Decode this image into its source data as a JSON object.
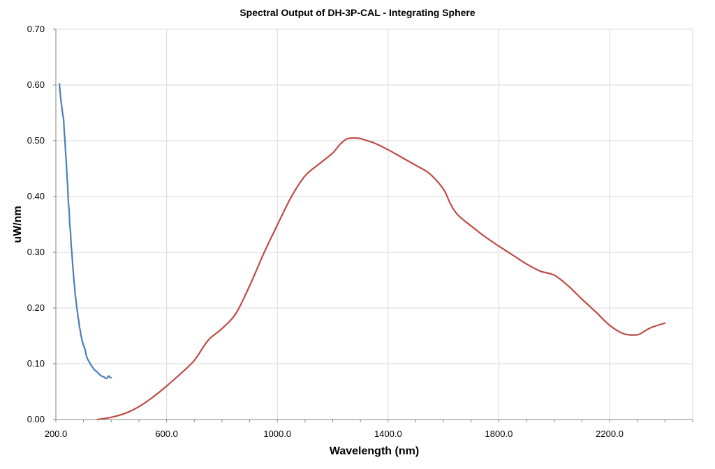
{
  "chart_data": {
    "type": "line",
    "title": "Spectral Output of DH-3P-CAL - Integrating Sphere",
    "xlabel": "Wavelength (nm)",
    "ylabel": "uW/nm",
    "xlim": [
      200,
      2500
    ],
    "ylim": [
      0,
      0.7
    ],
    "xticks": [
      200,
      600,
      1000,
      1400,
      1800,
      2200
    ],
    "xtick_labels": [
      "200.0",
      "600.0",
      "1000.0",
      "1400.0",
      "1800.0",
      "2200.0"
    ],
    "yticks": [
      0,
      0.1,
      0.2,
      0.3,
      0.4,
      0.5,
      0.6,
      0.7
    ],
    "ytick_labels": [
      "0.00",
      "0.10",
      "0.20",
      "0.30",
      "0.40",
      "0.50",
      "0.60",
      "0.70"
    ],
    "x_gridlines": [
      200,
      600,
      1000,
      1400,
      1800,
      2200,
      2500
    ],
    "grid": true,
    "legend": "none",
    "series": [
      {
        "color": "#4a7ebb",
        "x": [
          213,
          215,
          218,
          220,
          223,
          225,
          228,
          230,
          233,
          235,
          238,
          240,
          243,
          245,
          248,
          250,
          253,
          255,
          258,
          260,
          263,
          265,
          268,
          270,
          273,
          275,
          278,
          280,
          283,
          285,
          288,
          290,
          293,
          295,
          298,
          300,
          305,
          310,
          315,
          320,
          325,
          330,
          335,
          340,
          345,
          350,
          355,
          360,
          365,
          370,
          375,
          380,
          385,
          390,
          395,
          400
        ],
        "y": [
          0.602,
          0.589,
          0.574,
          0.566,
          0.555,
          0.547,
          0.538,
          0.519,
          0.499,
          0.481,
          0.458,
          0.438,
          0.415,
          0.391,
          0.375,
          0.352,
          0.335,
          0.315,
          0.298,
          0.283,
          0.264,
          0.251,
          0.237,
          0.224,
          0.213,
          0.202,
          0.193,
          0.184,
          0.176,
          0.167,
          0.16,
          0.153,
          0.146,
          0.141,
          0.136,
          0.133,
          0.126,
          0.115,
          0.108,
          0.104,
          0.099,
          0.096,
          0.092,
          0.089,
          0.087,
          0.085,
          0.082,
          0.08,
          0.078,
          0.077,
          0.076,
          0.074,
          0.074,
          0.078,
          0.076,
          0.075
        ]
      },
      {
        "color": "#be4b48",
        "x": [
          350,
          400,
          450,
          500,
          550,
          600,
          650,
          700,
          750,
          800,
          850,
          900,
          950,
          1000,
          1050,
          1100,
          1150,
          1200,
          1225,
          1250,
          1275,
          1300,
          1325,
          1350,
          1400,
          1450,
          1500,
          1550,
          1600,
          1625,
          1650,
          1700,
          1750,
          1800,
          1850,
          1900,
          1950,
          2000,
          2050,
          2100,
          2150,
          2200,
          2250,
          2300,
          2325,
          2350,
          2400
        ],
        "y": [
          0.0,
          0.004,
          0.011,
          0.023,
          0.04,
          0.06,
          0.082,
          0.106,
          0.142,
          0.163,
          0.19,
          0.24,
          0.297,
          0.349,
          0.399,
          0.437,
          0.458,
          0.478,
          0.493,
          0.503,
          0.505,
          0.504,
          0.5,
          0.496,
          0.484,
          0.47,
          0.456,
          0.441,
          0.413,
          0.387,
          0.368,
          0.347,
          0.328,
          0.311,
          0.295,
          0.279,
          0.266,
          0.259,
          0.24,
          0.216,
          0.193,
          0.169,
          0.154,
          0.152,
          0.158,
          0.165,
          0.173
        ]
      }
    ]
  }
}
